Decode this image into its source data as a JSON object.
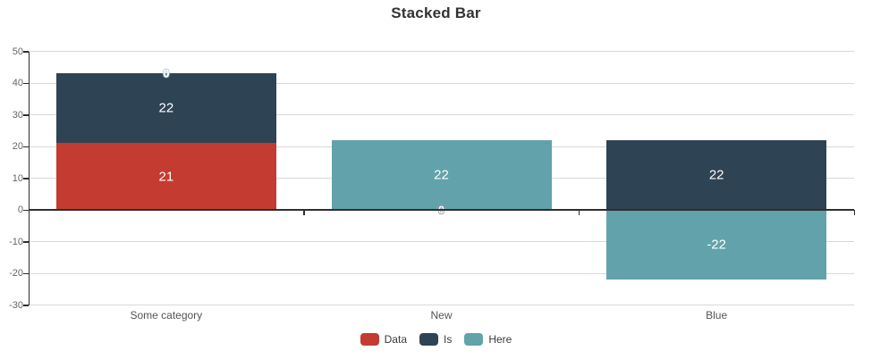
{
  "title": "Stacked Bar",
  "chart_data": {
    "type": "bar",
    "stacked": true,
    "title": "Stacked Bar",
    "categories": [
      "Some category",
      "New",
      "Blue"
    ],
    "series": [
      {
        "name": "Data",
        "color": "#c43b31",
        "values": [
          21,
          0,
          0
        ]
      },
      {
        "name": "Is",
        "color": "#2e4354",
        "values": [
          22,
          0,
          22
        ]
      },
      {
        "name": "Here",
        "color": "#62a2ab",
        "values": [
          0,
          22,
          -22
        ]
      }
    ],
    "y_ticks": [
      50,
      40,
      30,
      20,
      10,
      0,
      -10,
      -20,
      -30
    ],
    "ylim": [
      -30,
      50
    ],
    "grid": true,
    "legend_position": "bottom",
    "bar_labels_shown": [
      "21",
      "22",
      "22",
      "22",
      "-22"
    ],
    "visible_zero_labels": [
      {
        "category_index": 0,
        "series_index": 2,
        "at_value": 43,
        "text": "0"
      },
      {
        "category_index": 1,
        "series_index": 1,
        "at_value": 0,
        "text": "0"
      }
    ],
    "axis_colors": {
      "axis_line": "#2e2e2e",
      "grid_line": "#d8d8d8",
      "tick_label": "#666666",
      "category_label": "#545454",
      "title": "#333333",
      "value_label": "#ffffff"
    }
  }
}
